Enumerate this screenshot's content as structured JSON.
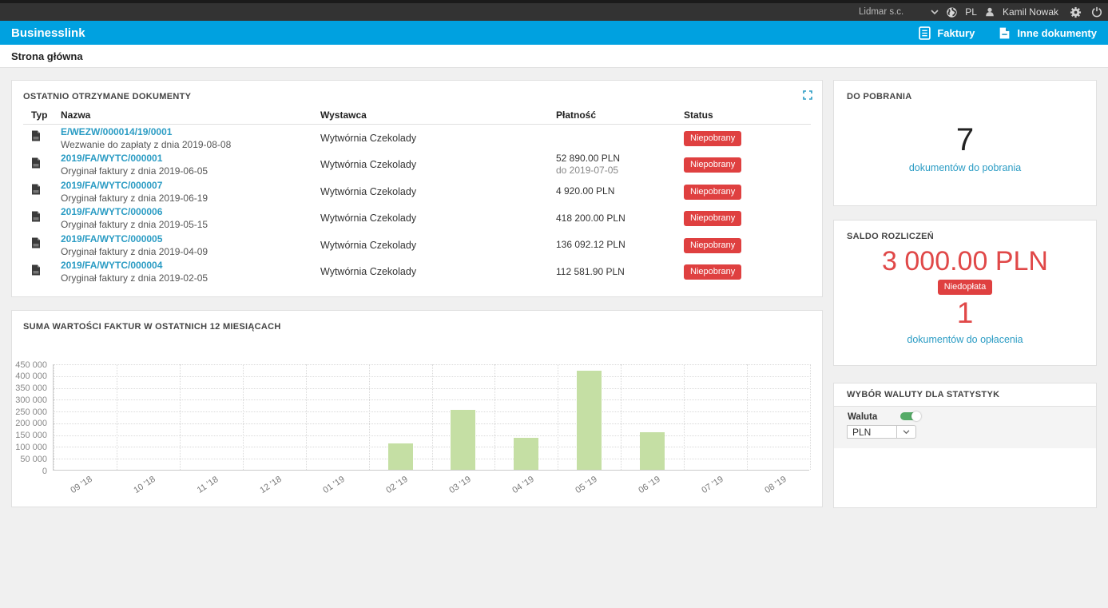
{
  "topbar": {
    "company": "Lidmar s.c.",
    "language": "PL",
    "user": "Kamil Nowak",
    "icons": [
      "chevron-down-icon",
      "globe-icon",
      "user-icon",
      "gear-icon",
      "power-icon"
    ]
  },
  "appbar": {
    "brand": "Businesslink",
    "nav": [
      {
        "label": "Faktury",
        "icon": "invoice-document-icon"
      },
      {
        "label": "Inne dokumenty",
        "icon": "other-documents-icon"
      }
    ]
  },
  "breadcrumb": "Strona główna",
  "documents_card": {
    "title": "OSTATNIO OTRZYMANE DOKUMENTY",
    "columns": [
      "Typ",
      "Nazwa",
      "Wystawca",
      "Płatność",
      "Status"
    ],
    "rows": [
      {
        "name": "E/WEZW/000014/19/0001",
        "desc": "Wezwanie do zapłaty z dnia 2019-08-08",
        "issuer": "Wytwórnia Czekolady",
        "payment": "",
        "payment_due": "",
        "status": "Niepobrany"
      },
      {
        "name": "2019/FA/WYTC/000001",
        "desc": "Oryginał faktury z dnia 2019-06-05",
        "issuer": "Wytwórnia Czekolady",
        "payment": "52 890.00 PLN",
        "payment_due": "do 2019-07-05",
        "status": "Niepobrany"
      },
      {
        "name": "2019/FA/WYTC/000007",
        "desc": "Oryginał faktury z dnia 2019-06-19",
        "issuer": "Wytwórnia Czekolady",
        "payment": "4 920.00 PLN",
        "payment_due": "",
        "status": "Niepobrany"
      },
      {
        "name": "2019/FA/WYTC/000006",
        "desc": "Oryginał faktury z dnia 2019-05-15",
        "issuer": "Wytwórnia Czekolady",
        "payment": "418 200.00 PLN",
        "payment_due": "",
        "status": "Niepobrany"
      },
      {
        "name": "2019/FA/WYTC/000005",
        "desc": "Oryginał faktury z dnia 2019-04-09",
        "issuer": "Wytwórnia Czekolady",
        "payment": "136 092.12 PLN",
        "payment_due": "",
        "status": "Niepobrany"
      },
      {
        "name": "2019/FA/WYTC/000004",
        "desc": "Oryginał faktury z dnia 2019-02-05",
        "issuer": "Wytwórnia Czekolady",
        "payment": "112 581.90 PLN",
        "payment_due": "",
        "status": "Niepobrany"
      }
    ]
  },
  "chart_data": {
    "type": "bar",
    "title": "SUMA WARTOŚCI FAKTUR W OSTATNICH 12 MIESIĄCACH",
    "categories": [
      "09 '18",
      "10 '18",
      "11 '18",
      "12 '18",
      "01 '19",
      "02 '19",
      "03 '19",
      "04 '19",
      "05 '19",
      "06 '19",
      "07 '19",
      "08 '19"
    ],
    "values": [
      0,
      0,
      0,
      0,
      0,
      112582,
      255000,
      136092,
      418200,
      160000,
      0,
      0
    ],
    "xlabel": "",
    "ylabel": "",
    "ylim": [
      0,
      450000
    ],
    "ytick_step": 50000,
    "grid": true,
    "legend": false,
    "bar_color": "#c5dfa4"
  },
  "download_card": {
    "title": "DO POBRANIA",
    "count": "7",
    "link": "dokumentów do pobrania"
  },
  "balance_card": {
    "title": "SALDO ROZLICZEŃ",
    "amount": "3 000.00 PLN",
    "badge": "Niedopłata",
    "count": "1",
    "link": "dokumentów do opłacenia"
  },
  "currency_card": {
    "title": "WYBÓR WALUTY DLA STATYSTYK",
    "label": "Waluta",
    "toggle_on": true,
    "selected": "PLN"
  },
  "colors": {
    "brand_blue": "#00A1E0",
    "link_blue": "#2b9cc4",
    "status_red": "#df4040",
    "balance_red": "#e04848",
    "bar_green": "#c5dfa4",
    "topbar_dark": "#333333",
    "toggle_green": "#55ab67"
  }
}
